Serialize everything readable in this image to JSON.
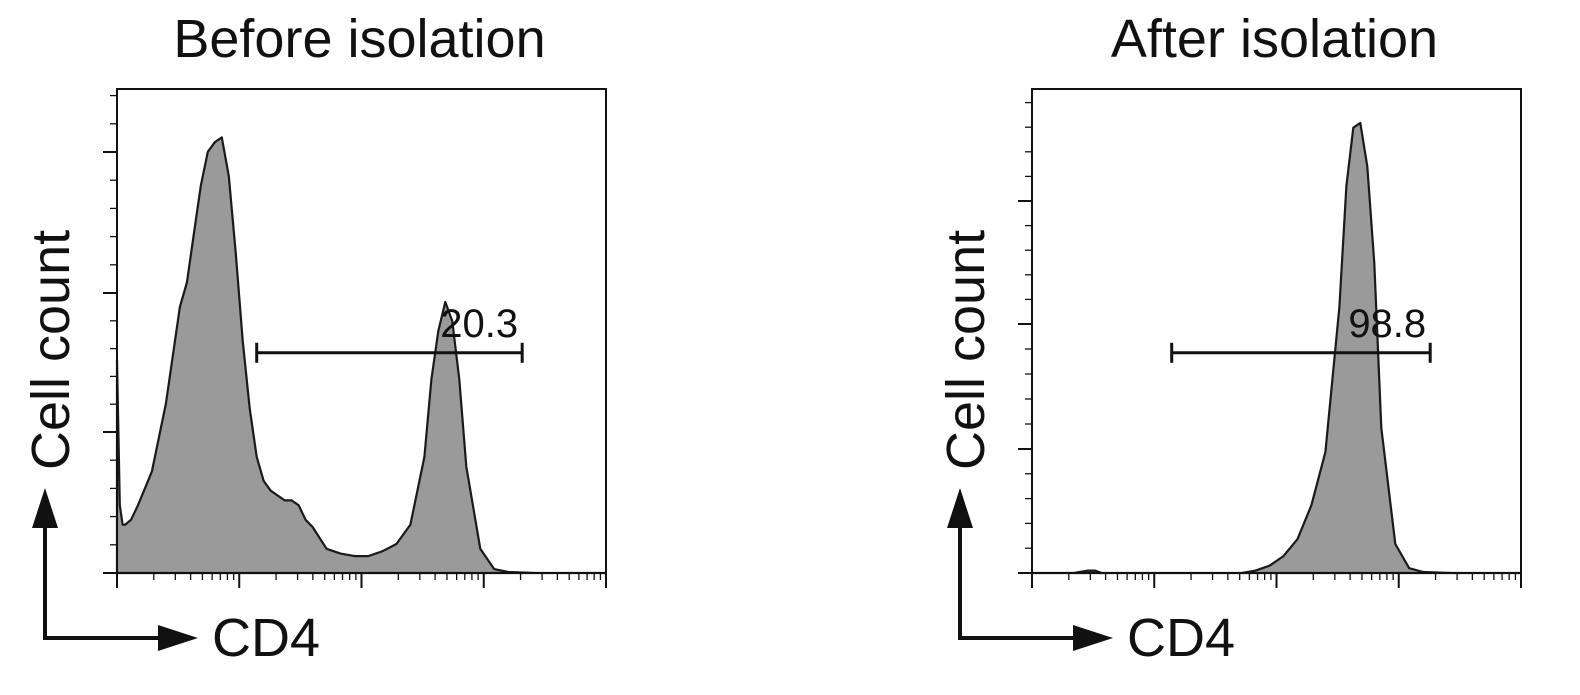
{
  "chart_data": [
    {
      "type": "area",
      "title": "Before isolation",
      "xlabel": "CD4",
      "ylabel": "Cell count",
      "x_scale": "log",
      "xlim": [
        0.5,
        4
      ],
      "ylim": [
        0,
        100
      ],
      "grid": false,
      "fill_color": "#9a9a9a",
      "line_color": "#1a1a1a",
      "gate": {
        "label": "20.3",
        "x_start": 1.5,
        "x_end": 3.4,
        "y": 45.5
      },
      "series": [
        {
          "x": [
            0.5,
            0.52,
            0.54,
            0.56,
            0.6,
            0.65,
            0.75,
            0.85,
            0.95,
            1.0,
            1.05,
            1.1,
            1.15,
            1.2,
            1.25,
            1.3,
            1.35,
            1.4,
            1.45,
            1.5,
            1.55,
            1.6,
            1.7,
            1.75,
            1.8,
            1.85,
            1.9,
            2.0,
            2.1,
            2.2,
            2.3,
            2.4,
            2.5,
            2.6,
            2.7,
            2.75,
            2.8,
            2.85,
            2.9,
            2.95,
            3.0,
            3.1,
            3.2,
            3.3,
            3.5,
            4.0
          ],
          "values": [
            44,
            14,
            10,
            10,
            11,
            14,
            21,
            35,
            55,
            60,
            70,
            80,
            87,
            89,
            90,
            82,
            66,
            48,
            34,
            24,
            19,
            17,
            15,
            15,
            14,
            11,
            9.5,
            5,
            4,
            3.5,
            3.5,
            4.5,
            6,
            10,
            24,
            40,
            50,
            56,
            52,
            40,
            22,
            5,
            0.8,
            0.2,
            0,
            0
          ]
        }
      ]
    },
    {
      "type": "area",
      "title": "After isolation",
      "xlabel": "CD4",
      "ylabel": "Cell count",
      "x_scale": "log",
      "xlim": [
        0.5,
        4
      ],
      "ylim": [
        0,
        100
      ],
      "grid": false,
      "fill_color": "#9a9a9a",
      "line_color": "#1a1a1a",
      "gate": {
        "label": "98.8",
        "x_start": 1.5,
        "x_end": 3.35,
        "y": 45.5
      },
      "series": [
        {
          "x": [
            0.5,
            0.8,
            0.9,
            0.95,
            1.0,
            1.1,
            1.5,
            2.0,
            2.1,
            2.2,
            2.3,
            2.4,
            2.5,
            2.6,
            2.7,
            2.75,
            2.8,
            2.85,
            2.9,
            2.95,
            3.0,
            3.1,
            3.2,
            3.3,
            3.5,
            4.0
          ],
          "values": [
            0,
            0,
            0.5,
            0.5,
            0,
            0,
            0,
            0,
            0.5,
            1.5,
            3.5,
            7,
            14,
            25,
            55,
            80,
            92,
            93,
            84,
            64,
            30,
            6,
            1,
            0.2,
            0,
            0
          ]
        }
      ]
    }
  ]
}
